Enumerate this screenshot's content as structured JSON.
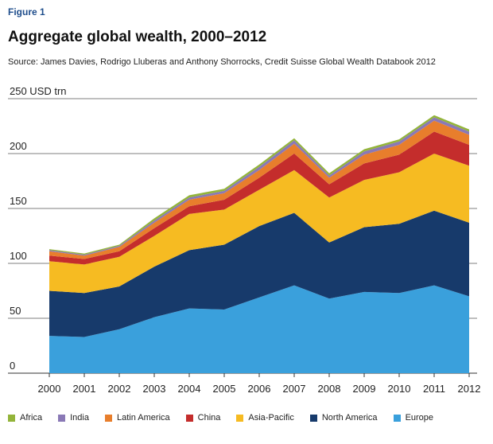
{
  "figure_label": "Figure 1",
  "title": "Aggregate global wealth, 2000–2012",
  "source": "Source: James Davies, Rodrigo Lluberas and Anthony Shorrocks, Credit Suisse Global Wealth Databook 2012",
  "colors": {
    "Europe": "#3aa0dc",
    "North America": "#173a6b",
    "Asia-Pacific": "#f6bb22",
    "China": "#c42d2c",
    "Latin America": "#e87e2c",
    "India": "#8a79b6",
    "Africa": "#93b43a"
  },
  "chart_data": {
    "type": "area",
    "stacked": true,
    "title": "Aggregate global wealth, 2000–2012",
    "ylabel": "USD trn",
    "unit_label": "250  USD trn",
    "ylim": [
      0,
      250
    ],
    "yticks": [
      "0",
      "50",
      "100",
      "150",
      "200"
    ],
    "categories": [
      "2000",
      "2001",
      "2002",
      "2003",
      "2004",
      "2005",
      "2006",
      "2007",
      "2008",
      "2009",
      "2010",
      "2011",
      "2012"
    ],
    "series": [
      {
        "name": "Europe",
        "values": [
          34,
          33,
          40,
          51,
          59,
          58,
          69,
          80,
          68,
          74,
          73,
          80,
          70
        ]
      },
      {
        "name": "North America",
        "values": [
          41,
          40,
          39,
          46,
          53,
          59,
          65,
          66,
          51,
          59,
          63,
          68,
          67
        ]
      },
      {
        "name": "Asia-Pacific",
        "values": [
          27,
          26,
          27,
          28,
          33,
          32,
          33,
          39,
          41,
          43,
          47,
          52,
          52
        ]
      },
      {
        "name": "China",
        "values": [
          5,
          5,
          5,
          7,
          7,
          9,
          11,
          15,
          12,
          15,
          16,
          20,
          19
        ]
      },
      {
        "name": "Latin America",
        "values": [
          4,
          3,
          4,
          5,
          6,
          6,
          7,
          9,
          6,
          8,
          9,
          10,
          9
        ]
      },
      {
        "name": "India",
        "values": [
          1,
          1,
          1,
          2,
          2,
          2,
          3,
          3,
          2,
          3,
          3,
          3,
          3
        ]
      },
      {
        "name": "Africa",
        "values": [
          1,
          1,
          1,
          2,
          2,
          2,
          2,
          2,
          2,
          2,
          2,
          2,
          2
        ]
      }
    ],
    "legend": [
      "Africa",
      "India",
      "Latin America",
      "China",
      "Asia-Pacific",
      "North America",
      "Europe"
    ]
  }
}
